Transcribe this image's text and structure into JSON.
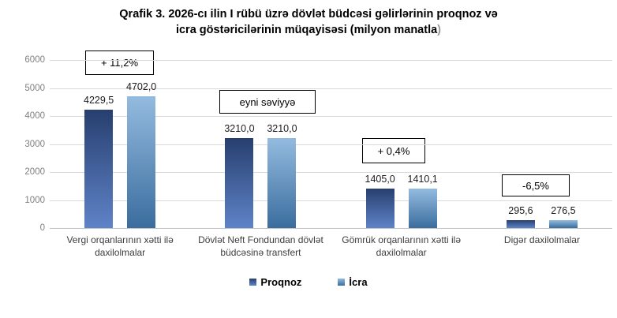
{
  "title": {
    "line1": "Qrafik 3. 2026-cı ilin I rübü üzrə dövlət büdcəsi gəlirlərinin proqnoz və",
    "line2_main": "icra göstəricilərinin müqayisəsi (milyon manatla",
    "line2_suffix": ")"
  },
  "chart_data": {
    "type": "bar",
    "categories": [
      "Vergi orqanlarının xətti ilə daxilolmalar",
      "Dövlət Neft Fondundan dövlət büdcəsinə transfert",
      "Gömrük orqanlarının xətti ilə daxilolmalar",
      "Digər daxilolmalar"
    ],
    "series": [
      {
        "name": "Proqnoz",
        "values": [
          4229.5,
          3210.0,
          1405.0,
          295.6
        ],
        "labels": [
          "4229,5",
          "3210,0",
          "1405,0",
          "295,6"
        ]
      },
      {
        "name": "İcra",
        "values": [
          4702.0,
          3210.0,
          1410.1,
          276.5
        ],
        "labels": [
          "4702,0",
          "3210,0",
          "1410,1",
          "276,5"
        ]
      }
    ],
    "annotations": [
      "+ 11,2%",
      "eyni səviyyə",
      "+ 0,4%",
      "-6,5%"
    ],
    "y_ticks": [
      0,
      1000,
      2000,
      3000,
      4000,
      5000,
      6000
    ],
    "ylim": [
      0,
      6000
    ],
    "grid": true,
    "legend_position": "bottom",
    "colors": {
      "proqnoz_top": "#273f6f",
      "proqnoz_bottom": "#5f83c8",
      "icra_top": "#94bbdf",
      "icra_bottom": "#3a6d9e",
      "gridline": "#d9d9d9",
      "axis_line": "#c3c3c3",
      "tick_label": "#7f7f7f",
      "annotation_border": "#000000"
    }
  }
}
